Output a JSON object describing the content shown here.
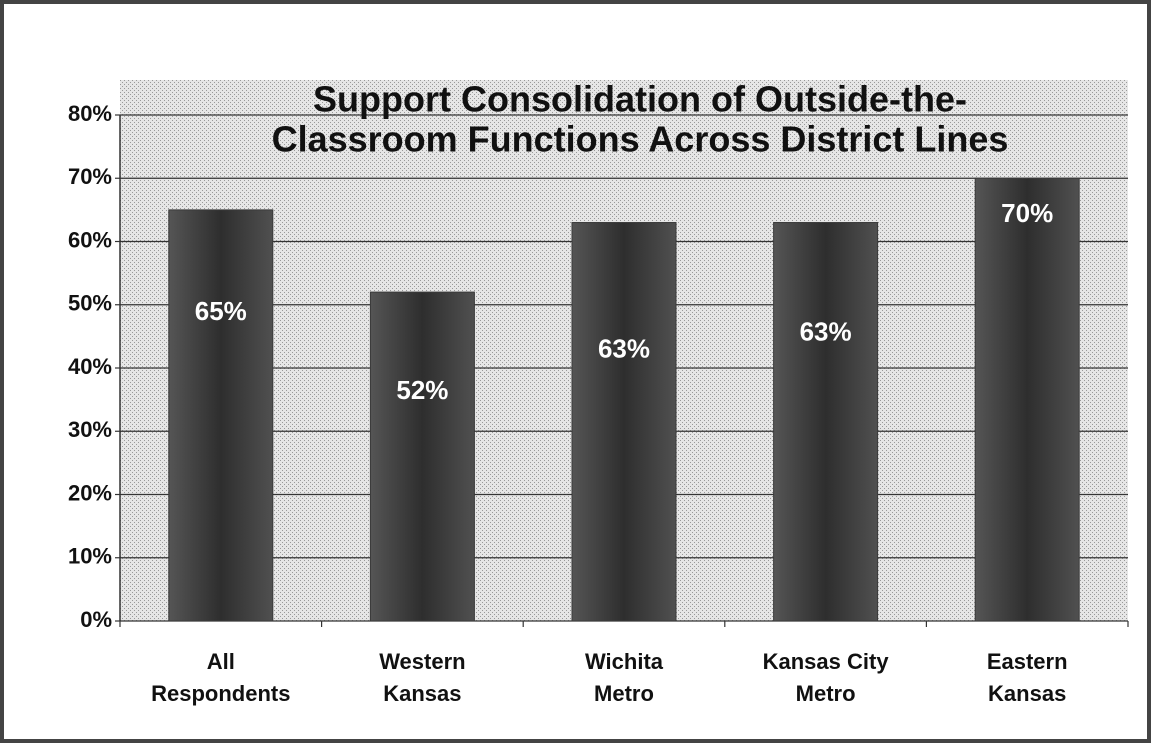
{
  "chart_data": {
    "type": "bar",
    "title": [
      "Support  Consolidation of Outside-the-",
      "Classroom Functions Across District Lines"
    ],
    "categories": [
      "All Respondents",
      "Western Kansas",
      "Wichita Metro",
      "Kansas City Metro",
      "Eastern Kansas"
    ],
    "values": [
      65,
      52,
      63,
      63,
      70
    ],
    "value_labels": [
      "65%",
      "52%",
      "63%",
      "63%",
      "70%"
    ],
    "color": "#3a3a3a",
    "ylim": [
      0,
      80
    ],
    "yticks": [
      {
        "value": 0,
        "label": "0%"
      },
      {
        "value": 10,
        "label": "10%"
      },
      {
        "value": 20,
        "label": "20%"
      },
      {
        "value": 30,
        "label": "30%"
      },
      {
        "value": 40,
        "label": "40%"
      },
      {
        "value": 50,
        "label": "50%"
      },
      {
        "value": 60,
        "label": "60%"
      },
      {
        "value": 70,
        "label": "70%"
      },
      {
        "value": 80,
        "label": "80%"
      }
    ],
    "grid": true
  }
}
